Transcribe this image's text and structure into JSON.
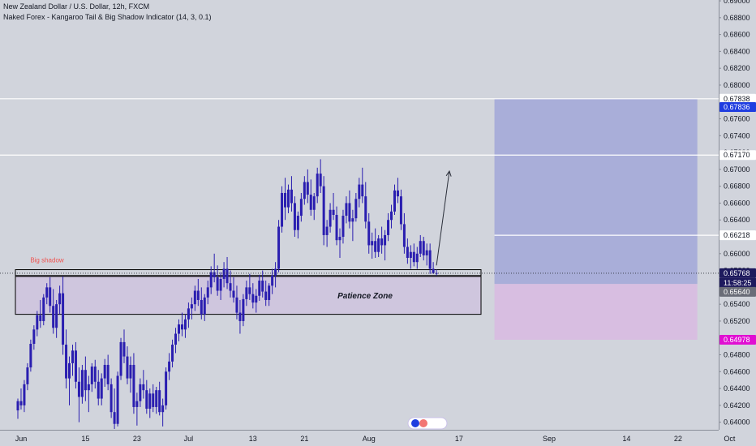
{
  "header": {
    "symbol_title": "New Zealand Dollar / U.S. Dollar, 12h, FXCM",
    "indicator": "Naked Forex - Kangaroo Tail & Big Shadow Indicator (14, 3, 0.1)"
  },
  "annotations": {
    "big_shadow": "Big shadow",
    "patience_zone": "Patience Zone",
    "countdown": "11:58:25"
  },
  "colors": {
    "background": "#d1d4dc",
    "candle": "#2a1eb0",
    "profit_zone": "#a6acd8",
    "loss_zone": "#d8bde0",
    "patience_fill": "#cfc6de",
    "hline": "#ffffff",
    "accent_blue": "#1f3de0",
    "accent_magenta": "#e00fd2",
    "current_price_bg": "#1e1a5e",
    "big_shadow_text": "#ef5350"
  },
  "chart_data": {
    "type": "candlestick",
    "symbol": "NZDUSD",
    "interval": "12h",
    "y_axis": {
      "min": 0.6391,
      "max": 0.6901,
      "side": "right",
      "ticks": [
        "0.64000",
        "0.64200",
        "0.64400",
        "0.64600",
        "0.64800",
        "0.65000",
        "0.65200",
        "0.65400",
        "0.65600",
        "0.65800",
        "0.66000",
        "0.66200",
        "0.66400",
        "0.66600",
        "0.66800",
        "0.67000",
        "0.67200",
        "0.67400",
        "0.67600",
        "0.67800",
        "0.68000",
        "0.68200",
        "0.68400",
        "0.68600",
        "0.68800",
        "0.69000"
      ]
    },
    "x_axis": {
      "labels": [
        {
          "label": "Jun",
          "bar": 1
        },
        {
          "label": "15",
          "bar": 21
        },
        {
          "label": "23",
          "bar": 37
        },
        {
          "label": "Jul",
          "bar": 53
        },
        {
          "label": "13",
          "bar": 73
        },
        {
          "label": "21",
          "bar": 89
        },
        {
          "label": "Aug",
          "bar": 109
        },
        {
          "label": "17",
          "bar": 137
        },
        {
          "label": "Sep",
          "bar": 165
        },
        {
          "label": "14",
          "bar": 189
        },
        {
          "label": "22",
          "bar": 205
        },
        {
          "label": "Oct",
          "bar": 221
        }
      ]
    },
    "price_labels": [
      {
        "value": "0.67838",
        "style": "plain"
      },
      {
        "value": "0.67836",
        "style": "blue"
      },
      {
        "value": "0.67170",
        "style": "plain"
      },
      {
        "value": "0.66218",
        "style": "plain"
      },
      {
        "value": "0.65768",
        "style": "current"
      },
      {
        "value": "0.65640",
        "style": "gray"
      },
      {
        "value": "0.64978",
        "style": "magenta"
      }
    ],
    "horizontal_lines": [
      0.67838,
      0.6717,
      0.66218
    ],
    "current_price": 0.65768,
    "levels": {
      "long_tp": 0.67838,
      "long_entry": 0.6564,
      "long_sl": 0.64978,
      "long_mid": 0.66218,
      "long_start_bar": 148,
      "long_end_bar": 211
    },
    "zones": {
      "big_shadow_zone": {
        "top": 0.6581,
        "bottom": 0.6574,
        "start_bar": 0,
        "end_bar": 147
      },
      "patience_zone": {
        "top": 0.6573,
        "bottom": 0.6528,
        "start_bar": 0,
        "end_bar": 147
      }
    },
    "arrow": {
      "from": {
        "bar": 130,
        "price": 0.6586
      },
      "to": {
        "bar": 134,
        "price": 0.6698
      }
    },
    "candles": [
      [
        0.6414,
        0.6428,
        0.6404,
        0.6425
      ],
      [
        0.6425,
        0.644,
        0.6415,
        0.642
      ],
      [
        0.642,
        0.645,
        0.6412,
        0.6445
      ],
      [
        0.6445,
        0.647,
        0.6438,
        0.6465
      ],
      [
        0.6465,
        0.6498,
        0.646,
        0.6493
      ],
      [
        0.6493,
        0.6515,
        0.6486,
        0.651
      ],
      [
        0.651,
        0.6532,
        0.6502,
        0.6527
      ],
      [
        0.6527,
        0.6545,
        0.6512,
        0.652
      ],
      [
        0.652,
        0.6552,
        0.6515,
        0.6548
      ],
      [
        0.6548,
        0.6565,
        0.654,
        0.656
      ],
      [
        0.656,
        0.6572,
        0.653,
        0.6538
      ],
      [
        0.6538,
        0.6558,
        0.6505,
        0.6512
      ],
      [
        0.6512,
        0.6545,
        0.65,
        0.654
      ],
      [
        0.654,
        0.6562,
        0.6528,
        0.6553
      ],
      [
        0.6553,
        0.6573,
        0.648,
        0.6492
      ],
      [
        0.6492,
        0.651,
        0.644,
        0.6452
      ],
      [
        0.6452,
        0.6478,
        0.642,
        0.647
      ],
      [
        0.647,
        0.6492,
        0.6455,
        0.6485
      ],
      [
        0.6485,
        0.6495,
        0.644,
        0.6448
      ],
      [
        0.6448,
        0.6465,
        0.64,
        0.643
      ],
      [
        0.643,
        0.6468,
        0.6422,
        0.6462
      ],
      [
        0.6462,
        0.6478,
        0.6425,
        0.6438
      ],
      [
        0.6438,
        0.6455,
        0.6412,
        0.6445
      ],
      [
        0.6445,
        0.647,
        0.6436,
        0.6466
      ],
      [
        0.6466,
        0.6474,
        0.644,
        0.6448
      ],
      [
        0.6448,
        0.6462,
        0.642,
        0.6428
      ],
      [
        0.6428,
        0.6458,
        0.642,
        0.6452
      ],
      [
        0.6452,
        0.6475,
        0.6442,
        0.6468
      ],
      [
        0.6468,
        0.648,
        0.6438,
        0.6445
      ],
      [
        0.6445,
        0.6452,
        0.6405,
        0.6412
      ],
      [
        0.6412,
        0.644,
        0.6392,
        0.6398
      ],
      [
        0.6398,
        0.646,
        0.6395,
        0.6455
      ],
      [
        0.6455,
        0.65,
        0.645,
        0.6495
      ],
      [
        0.6495,
        0.651,
        0.647,
        0.6478
      ],
      [
        0.6478,
        0.649,
        0.6445,
        0.6452
      ],
      [
        0.6452,
        0.6478,
        0.6435,
        0.6468
      ],
      [
        0.6468,
        0.6482,
        0.641,
        0.6418
      ],
      [
        0.6418,
        0.6435,
        0.6396,
        0.6425
      ],
      [
        0.6425,
        0.6452,
        0.6418,
        0.6445
      ],
      [
        0.6445,
        0.6462,
        0.6428,
        0.6438
      ],
      [
        0.6438,
        0.645,
        0.641,
        0.6416
      ],
      [
        0.6416,
        0.644,
        0.6405,
        0.6434
      ],
      [
        0.6434,
        0.6445,
        0.6412,
        0.6418
      ],
      [
        0.6418,
        0.6442,
        0.641,
        0.6438
      ],
      [
        0.6438,
        0.6448,
        0.6408,
        0.6412
      ],
      [
        0.6412,
        0.6428,
        0.6395,
        0.642
      ],
      [
        0.642,
        0.6465,
        0.6415,
        0.646
      ],
      [
        0.646,
        0.6482,
        0.645,
        0.6472
      ],
      [
        0.6472,
        0.6498,
        0.6465,
        0.6492
      ],
      [
        0.6492,
        0.6512,
        0.6482,
        0.6505
      ],
      [
        0.6505,
        0.6522,
        0.6496,
        0.6516
      ],
      [
        0.6516,
        0.653,
        0.6502,
        0.651
      ],
      [
        0.651,
        0.6528,
        0.65,
        0.6522
      ],
      [
        0.6522,
        0.6542,
        0.6512,
        0.6535
      ],
      [
        0.6535,
        0.6548,
        0.6522,
        0.654
      ],
      [
        0.654,
        0.6562,
        0.6532,
        0.6556
      ],
      [
        0.6556,
        0.657,
        0.6538,
        0.6545
      ],
      [
        0.6545,
        0.656,
        0.6522,
        0.6528
      ],
      [
        0.6528,
        0.6552,
        0.652,
        0.6548
      ],
      [
        0.6548,
        0.6568,
        0.654,
        0.656
      ],
      [
        0.656,
        0.6585,
        0.6552,
        0.6578
      ],
      [
        0.6578,
        0.66,
        0.6566,
        0.6572
      ],
      [
        0.6572,
        0.6586,
        0.655,
        0.6556
      ],
      [
        0.6556,
        0.6578,
        0.6545,
        0.657
      ],
      [
        0.657,
        0.659,
        0.656,
        0.6582
      ],
      [
        0.6582,
        0.6596,
        0.6558,
        0.6565
      ],
      [
        0.6565,
        0.658,
        0.6548,
        0.6556
      ],
      [
        0.6556,
        0.6572,
        0.6542,
        0.6548
      ],
      [
        0.6548,
        0.6562,
        0.6522,
        0.653
      ],
      [
        0.653,
        0.6545,
        0.6505,
        0.652
      ],
      [
        0.652,
        0.6552,
        0.6514,
        0.6546
      ],
      [
        0.6546,
        0.6568,
        0.6538,
        0.656
      ],
      [
        0.656,
        0.6576,
        0.6545,
        0.6552
      ],
      [
        0.6552,
        0.6565,
        0.6535,
        0.6542
      ],
      [
        0.6542,
        0.6558,
        0.653,
        0.655
      ],
      [
        0.655,
        0.6575,
        0.6544,
        0.6568
      ],
      [
        0.6568,
        0.658,
        0.6548,
        0.6555
      ],
      [
        0.6555,
        0.6568,
        0.6538,
        0.6545
      ],
      [
        0.6545,
        0.6565,
        0.6538,
        0.6562
      ],
      [
        0.6562,
        0.6582,
        0.6552,
        0.6574
      ],
      [
        0.6574,
        0.659,
        0.656,
        0.6582
      ],
      [
        0.6582,
        0.664,
        0.6578,
        0.6632
      ],
      [
        0.6632,
        0.668,
        0.6625,
        0.6672
      ],
      [
        0.6672,
        0.669,
        0.664,
        0.6655
      ],
      [
        0.6655,
        0.6682,
        0.6648,
        0.6676
      ],
      [
        0.6676,
        0.6692,
        0.665,
        0.666
      ],
      [
        0.666,
        0.6668,
        0.662,
        0.6628
      ],
      [
        0.6628,
        0.665,
        0.6618,
        0.6645
      ],
      [
        0.6645,
        0.6672,
        0.6638,
        0.6665
      ],
      [
        0.6665,
        0.6692,
        0.6658,
        0.6685
      ],
      [
        0.6685,
        0.67,
        0.666,
        0.667
      ],
      [
        0.667,
        0.6688,
        0.6645,
        0.6652
      ],
      [
        0.6652,
        0.6672,
        0.664,
        0.6668
      ],
      [
        0.6668,
        0.6702,
        0.666,
        0.6695
      ],
      [
        0.6695,
        0.6712,
        0.6672,
        0.668
      ],
      [
        0.668,
        0.6692,
        0.661,
        0.6622
      ],
      [
        0.6622,
        0.664,
        0.6608,
        0.6632
      ],
      [
        0.6632,
        0.666,
        0.6625,
        0.6652
      ],
      [
        0.6652,
        0.6672,
        0.664,
        0.6646
      ],
      [
        0.6646,
        0.6656,
        0.661,
        0.6616
      ],
      [
        0.6616,
        0.663,
        0.6595,
        0.662
      ],
      [
        0.662,
        0.6652,
        0.6612,
        0.6645
      ],
      [
        0.6645,
        0.6668,
        0.6636,
        0.666
      ],
      [
        0.666,
        0.6675,
        0.663,
        0.6638
      ],
      [
        0.6638,
        0.6652,
        0.6615,
        0.6642
      ],
      [
        0.6642,
        0.6672,
        0.6638,
        0.6665
      ],
      [
        0.6665,
        0.669,
        0.6655,
        0.6682
      ],
      [
        0.6682,
        0.6702,
        0.666,
        0.6668
      ],
      [
        0.6668,
        0.6685,
        0.663,
        0.6638
      ],
      [
        0.6638,
        0.6648,
        0.66,
        0.661
      ],
      [
        0.661,
        0.6625,
        0.6594,
        0.6615
      ],
      [
        0.6615,
        0.663,
        0.6595,
        0.6602
      ],
      [
        0.6602,
        0.6622,
        0.6596,
        0.6618
      ],
      [
        0.6618,
        0.6632,
        0.66,
        0.661
      ],
      [
        0.661,
        0.6628,
        0.6592,
        0.6622
      ],
      [
        0.6622,
        0.6648,
        0.6615,
        0.664
      ],
      [
        0.664,
        0.6658,
        0.663,
        0.665
      ],
      [
        0.665,
        0.6682,
        0.6646,
        0.6675
      ],
      [
        0.6675,
        0.669,
        0.666,
        0.6668
      ],
      [
        0.6668,
        0.6676,
        0.6628,
        0.6635
      ],
      [
        0.6635,
        0.6648,
        0.66,
        0.6608
      ],
      [
        0.6608,
        0.6618,
        0.6588,
        0.6595
      ],
      [
        0.6595,
        0.661,
        0.6582,
        0.6602
      ],
      [
        0.6602,
        0.6612,
        0.6585,
        0.659
      ],
      [
        0.659,
        0.6608,
        0.6582,
        0.66
      ],
      [
        0.66,
        0.6622,
        0.6596,
        0.6615
      ],
      [
        0.6615,
        0.662,
        0.6592,
        0.6598
      ],
      [
        0.6598,
        0.6612,
        0.6586,
        0.6604
      ],
      [
        0.6604,
        0.6612,
        0.6576,
        0.6582
      ],
      [
        0.6582,
        0.659,
        0.6576,
        0.6577
      ],
      [
        0.6577,
        0.6581,
        0.6574,
        0.6577
      ]
    ]
  }
}
